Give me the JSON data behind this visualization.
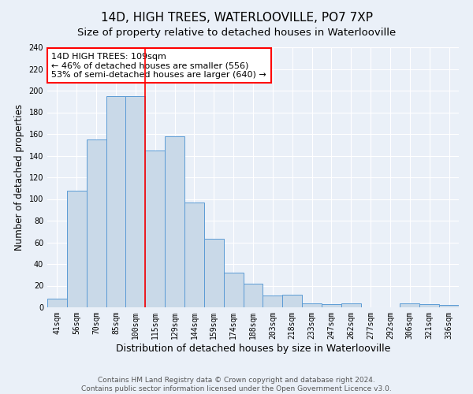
{
  "title": "14D, HIGH TREES, WATERLOOVILLE, PO7 7XP",
  "subtitle": "Size of property relative to detached houses in Waterlooville",
  "xlabel": "Distribution of detached houses by size in Waterlooville",
  "ylabel": "Number of detached properties",
  "categories": [
    "41sqm",
    "56sqm",
    "70sqm",
    "85sqm",
    "100sqm",
    "115sqm",
    "129sqm",
    "144sqm",
    "159sqm",
    "174sqm",
    "188sqm",
    "203sqm",
    "218sqm",
    "233sqm",
    "247sqm",
    "262sqm",
    "277sqm",
    "292sqm",
    "306sqm",
    "321sqm",
    "336sqm"
  ],
  "values": [
    8,
    108,
    155,
    195,
    195,
    145,
    158,
    97,
    63,
    32,
    22,
    11,
    12,
    4,
    3,
    4,
    0,
    0,
    4,
    3,
    2
  ],
  "bar_color": "#c9d9e8",
  "bar_edge_color": "#5b9bd5",
  "vline_x_index": 4.5,
  "vline_color": "red",
  "annotation_text": "14D HIGH TREES: 109sqm\n← 46% of detached houses are smaller (556)\n53% of semi-detached houses are larger (640) →",
  "annotation_box_color": "white",
  "annotation_box_edge_color": "red",
  "ylim": [
    0,
    240
  ],
  "yticks": [
    0,
    20,
    40,
    60,
    80,
    100,
    120,
    140,
    160,
    180,
    200,
    220,
    240
  ],
  "background_color": "#eaf0f8",
  "grid_color": "white",
  "footer": "Contains HM Land Registry data © Crown copyright and database right 2024.\nContains public sector information licensed under the Open Government Licence v3.0.",
  "title_fontsize": 11,
  "subtitle_fontsize": 9.5,
  "xlabel_fontsize": 9,
  "ylabel_fontsize": 8.5,
  "tick_fontsize": 7,
  "footer_fontsize": 6.5,
  "annotation_fontsize": 8
}
